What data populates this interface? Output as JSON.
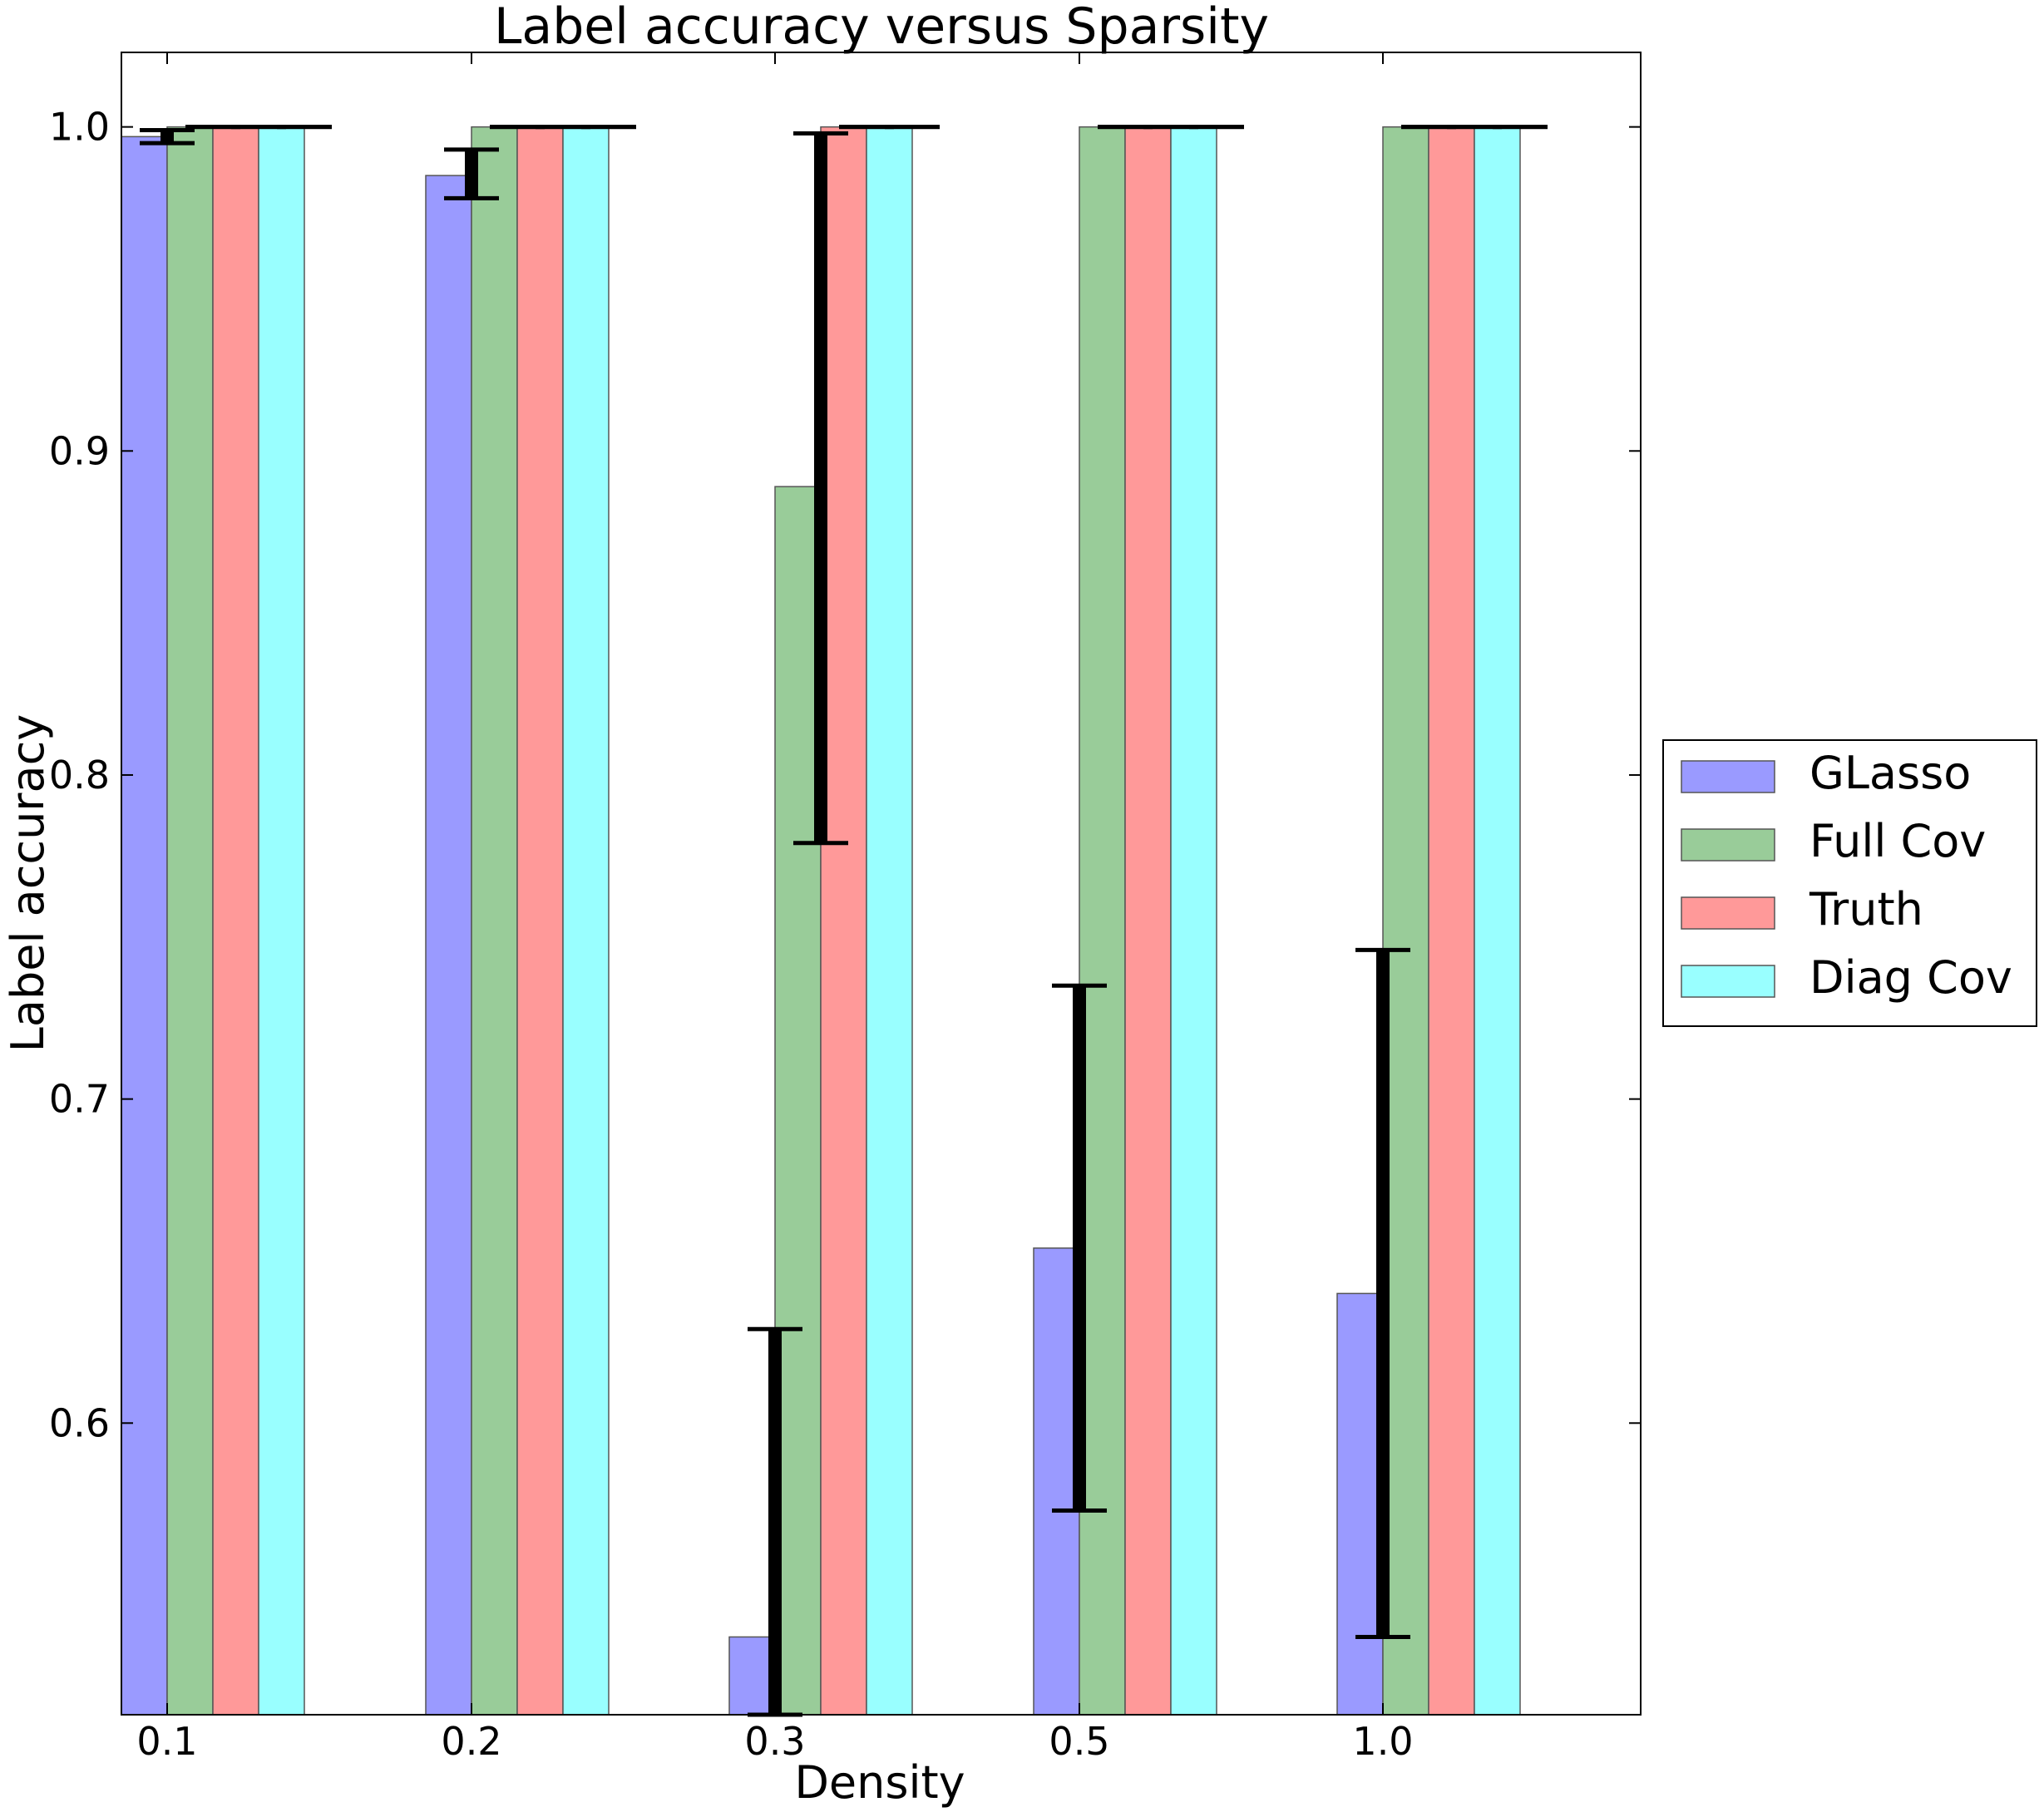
{
  "chart_data": {
    "type": "bar",
    "title": "Label accuracy versus Sparsity",
    "xlabel": "Density",
    "ylabel": "Label accuracy",
    "categories": [
      "0.1",
      "0.2",
      "0.3",
      "0.5",
      "1.0"
    ],
    "ylim": [
      0.51,
      1.023
    ],
    "yticks": [
      "0.6",
      "0.7",
      "0.8",
      "0.9",
      "1.0"
    ],
    "grid": false,
    "legend_position": "right",
    "series": [
      {
        "name": "GLasso",
        "color": "#9a9aff",
        "values": [
          0.997,
          0.985,
          0.534,
          0.654,
          0.64
        ],
        "error_low": [
          0.995,
          0.978,
          0.51,
          0.573,
          0.534
        ],
        "error_high": [
          0.999,
          0.993,
          0.629,
          0.735,
          0.746
        ]
      },
      {
        "name": "Full Cov",
        "color": "#99cc99",
        "values": [
          1.0,
          1.0,
          0.889,
          1.0,
          1.0
        ],
        "error_low": [
          1.0,
          1.0,
          0.779,
          1.0,
          1.0
        ],
        "error_high": [
          1.0,
          1.0,
          0.998,
          1.0,
          1.0
        ]
      },
      {
        "name": "Truth",
        "color": "#ff9999",
        "values": [
          1.0,
          1.0,
          1.0,
          1.0,
          1.0
        ],
        "error_low": [
          1.0,
          1.0,
          1.0,
          1.0,
          1.0
        ],
        "error_high": [
          1.0,
          1.0,
          1.0,
          1.0,
          1.0
        ]
      },
      {
        "name": "Diag Cov",
        "color": "#99ffff",
        "values": [
          1.0,
          1.0,
          1.0,
          1.0,
          1.0
        ],
        "error_low": [
          1.0,
          1.0,
          1.0,
          1.0,
          1.0
        ],
        "error_high": [
          1.0,
          1.0,
          1.0,
          1.0,
          1.0
        ]
      }
    ]
  }
}
